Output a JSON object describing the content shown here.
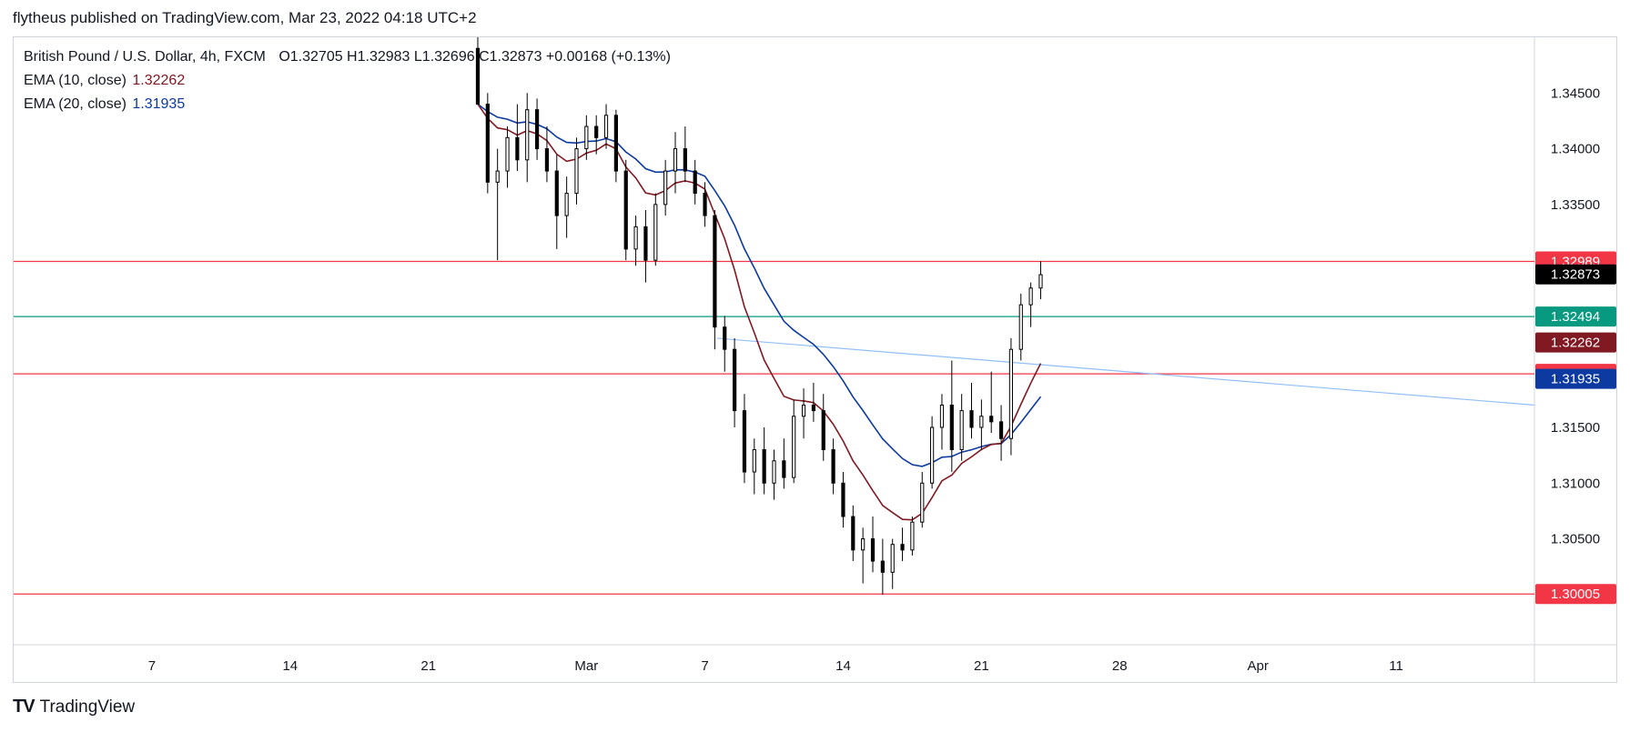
{
  "header": {
    "published": "flytheus published on TradingView.com, Mar 23, 2022 04:18 UTC+2"
  },
  "legend": {
    "symbol": "British Pound / U.S. Dollar, 4h, FXCM",
    "ohlc": "O1.32705  H1.32983  L1.32696  C1.32873  +0.00168 (+0.13%)",
    "ema10_label": "EMA (10, close)",
    "ema10_value": "1.32262",
    "ema20_label": "EMA (20, close)",
    "ema20_value": "1.31935"
  },
  "footer": {
    "logo": "TV",
    "brand": "TradingView"
  },
  "colors": {
    "resistance": "#f23645",
    "support_line": "#089981",
    "ema10": "#801922",
    "ema20": "#0d3aa0",
    "trendline": "#90bff9",
    "price_label": "#000000"
  },
  "chart_data": {
    "type": "candlestick",
    "symbol": "GBPUSD",
    "timeframe": "4h",
    "ylim": [
      1.2955,
      1.35
    ],
    "y_ticks": [
      "1.34500",
      "1.34000",
      "1.33500",
      "1.31500",
      "1.31000",
      "1.30500"
    ],
    "x_ticks": [
      "7",
      "14",
      "21",
      "Mar",
      "7",
      "14",
      "21",
      "28",
      "Apr",
      "11"
    ],
    "x_tick_days": [
      7,
      14,
      21,
      29,
      35,
      42,
      49,
      56,
      63,
      70
    ],
    "x_range_days": [
      0,
      77
    ],
    "horizontal_levels": [
      {
        "price": 1.32989,
        "label": "1.32989",
        "color": "#f23645"
      },
      {
        "price": 1.32494,
        "label": "1.32494",
        "color": "#089981"
      },
      {
        "price": 1.3198,
        "label": "1.31980",
        "color": "#f23645"
      },
      {
        "price": 1.30005,
        "label": "1.30005",
        "color": "#f23645"
      }
    ],
    "price_labels": [
      {
        "price": 1.32873,
        "label": "1.32873",
        "color": "#000000"
      },
      {
        "price": 1.32262,
        "label": "1.32262",
        "color": "#801922"
      },
      {
        "price": 1.31935,
        "label": "1.31935",
        "color": "#0d3aa0"
      }
    ],
    "trendline": {
      "from": [
        35.6,
        1.323
      ],
      "to": [
        77,
        1.317
      ]
    },
    "candles": [
      {
        "d": 23.5,
        "o": 1.349,
        "h": 1.3525,
        "l": 1.344,
        "c": 1.344
      },
      {
        "d": 24.0,
        "o": 1.344,
        "h": 1.345,
        "l": 1.336,
        "c": 1.337
      },
      {
        "d": 24.5,
        "o": 1.337,
        "h": 1.34,
        "l": 1.33,
        "c": 1.338
      },
      {
        "d": 25.0,
        "o": 1.338,
        "h": 1.342,
        "l": 1.3365,
        "c": 1.341
      },
      {
        "d": 25.5,
        "o": 1.341,
        "h": 1.344,
        "l": 1.338,
        "c": 1.339
      },
      {
        "d": 26.0,
        "o": 1.339,
        "h": 1.345,
        "l": 1.337,
        "c": 1.3435
      },
      {
        "d": 26.5,
        "o": 1.3435,
        "h": 1.3445,
        "l": 1.339,
        "c": 1.34
      },
      {
        "d": 27.0,
        "o": 1.34,
        "h": 1.342,
        "l": 1.337,
        "c": 1.338
      },
      {
        "d": 27.5,
        "o": 1.338,
        "h": 1.3395,
        "l": 1.331,
        "c": 1.334
      },
      {
        "d": 28.0,
        "o": 1.334,
        "h": 1.3375,
        "l": 1.332,
        "c": 1.336
      },
      {
        "d": 28.5,
        "o": 1.336,
        "h": 1.341,
        "l": 1.335,
        "c": 1.34
      },
      {
        "d": 29.0,
        "o": 1.34,
        "h": 1.343,
        "l": 1.339,
        "c": 1.342
      },
      {
        "d": 29.5,
        "o": 1.342,
        "h": 1.343,
        "l": 1.3395,
        "c": 1.341
      },
      {
        "d": 30.0,
        "o": 1.341,
        "h": 1.344,
        "l": 1.34,
        "c": 1.343
      },
      {
        "d": 30.5,
        "o": 1.343,
        "h": 1.3435,
        "l": 1.337,
        "c": 1.338
      },
      {
        "d": 31.0,
        "o": 1.338,
        "h": 1.339,
        "l": 1.33,
        "c": 1.331
      },
      {
        "d": 31.5,
        "o": 1.331,
        "h": 1.334,
        "l": 1.3295,
        "c": 1.333
      },
      {
        "d": 32.0,
        "o": 1.333,
        "h": 1.3345,
        "l": 1.328,
        "c": 1.33
      },
      {
        "d": 32.5,
        "o": 1.33,
        "h": 1.336,
        "l": 1.3295,
        "c": 1.335
      },
      {
        "d": 33.0,
        "o": 1.335,
        "h": 1.339,
        "l": 1.334,
        "c": 1.338
      },
      {
        "d": 33.5,
        "o": 1.338,
        "h": 1.3415,
        "l": 1.336,
        "c": 1.34
      },
      {
        "d": 34.0,
        "o": 1.34,
        "h": 1.342,
        "l": 1.337,
        "c": 1.338
      },
      {
        "d": 34.5,
        "o": 1.338,
        "h": 1.339,
        "l": 1.335,
        "c": 1.336
      },
      {
        "d": 35.0,
        "o": 1.336,
        "h": 1.337,
        "l": 1.333,
        "c": 1.334
      },
      {
        "d": 35.5,
        "o": 1.334,
        "h": 1.3345,
        "l": 1.322,
        "c": 1.324
      },
      {
        "d": 36.0,
        "o": 1.324,
        "h": 1.325,
        "l": 1.32,
        "c": 1.322
      },
      {
        "d": 36.5,
        "o": 1.322,
        "h": 1.323,
        "l": 1.315,
        "c": 1.3165
      },
      {
        "d": 37.0,
        "o": 1.3165,
        "h": 1.318,
        "l": 1.31,
        "c": 1.311
      },
      {
        "d": 37.5,
        "o": 1.311,
        "h": 1.314,
        "l": 1.309,
        "c": 1.313
      },
      {
        "d": 38.0,
        "o": 1.313,
        "h": 1.315,
        "l": 1.309,
        "c": 1.31
      },
      {
        "d": 38.5,
        "o": 1.31,
        "h": 1.313,
        "l": 1.3085,
        "c": 1.312
      },
      {
        "d": 39.0,
        "o": 1.312,
        "h": 1.314,
        "l": 1.3095,
        "c": 1.3105
      },
      {
        "d": 39.5,
        "o": 1.3105,
        "h": 1.3175,
        "l": 1.31,
        "c": 1.316
      },
      {
        "d": 40.0,
        "o": 1.316,
        "h": 1.3185,
        "l": 1.314,
        "c": 1.317
      },
      {
        "d": 40.5,
        "o": 1.317,
        "h": 1.319,
        "l": 1.3155,
        "c": 1.3165
      },
      {
        "d": 41.0,
        "o": 1.3165,
        "h": 1.318,
        "l": 1.312,
        "c": 1.313
      },
      {
        "d": 41.5,
        "o": 1.313,
        "h": 1.314,
        "l": 1.309,
        "c": 1.31
      },
      {
        "d": 42.0,
        "o": 1.31,
        "h": 1.311,
        "l": 1.306,
        "c": 1.307
      },
      {
        "d": 42.5,
        "o": 1.307,
        "h": 1.308,
        "l": 1.303,
        "c": 1.304
      },
      {
        "d": 43.0,
        "o": 1.304,
        "h": 1.306,
        "l": 1.301,
        "c": 1.305
      },
      {
        "d": 43.5,
        "o": 1.305,
        "h": 1.307,
        "l": 1.302,
        "c": 1.303
      },
      {
        "d": 44.0,
        "o": 1.303,
        "h": 1.305,
        "l": 1.3,
        "c": 1.302
      },
      {
        "d": 44.5,
        "o": 1.302,
        "h": 1.305,
        "l": 1.3005,
        "c": 1.3045
      },
      {
        "d": 45.0,
        "o": 1.3045,
        "h": 1.306,
        "l": 1.303,
        "c": 1.304
      },
      {
        "d": 45.5,
        "o": 1.304,
        "h": 1.307,
        "l": 1.3035,
        "c": 1.3065
      },
      {
        "d": 46.0,
        "o": 1.3065,
        "h": 1.311,
        "l": 1.306,
        "c": 1.31
      },
      {
        "d": 46.5,
        "o": 1.31,
        "h": 1.316,
        "l": 1.3095,
        "c": 1.315
      },
      {
        "d": 47.0,
        "o": 1.315,
        "h": 1.318,
        "l": 1.313,
        "c": 1.317
      },
      {
        "d": 47.5,
        "o": 1.317,
        "h": 1.321,
        "l": 1.311,
        "c": 1.313
      },
      {
        "d": 48.0,
        "o": 1.313,
        "h": 1.318,
        "l": 1.312,
        "c": 1.3165
      },
      {
        "d": 48.5,
        "o": 1.3165,
        "h": 1.319,
        "l": 1.314,
        "c": 1.315
      },
      {
        "d": 49.0,
        "o": 1.315,
        "h": 1.3175,
        "l": 1.313,
        "c": 1.316
      },
      {
        "d": 49.5,
        "o": 1.316,
        "h": 1.32,
        "l": 1.3145,
        "c": 1.3155
      },
      {
        "d": 50.0,
        "o": 1.3155,
        "h": 1.317,
        "l": 1.312,
        "c": 1.314
      },
      {
        "d": 50.5,
        "o": 1.314,
        "h": 1.323,
        "l": 1.3125,
        "c": 1.322
      },
      {
        "d": 51.0,
        "o": 1.322,
        "h": 1.327,
        "l": 1.321,
        "c": 1.326
      },
      {
        "d": 51.5,
        "o": 1.326,
        "h": 1.328,
        "l": 1.324,
        "c": 1.3275
      },
      {
        "d": 52.0,
        "o": 1.3275,
        "h": 1.3299,
        "l": 1.3265,
        "c": 1.3287
      }
    ]
  }
}
